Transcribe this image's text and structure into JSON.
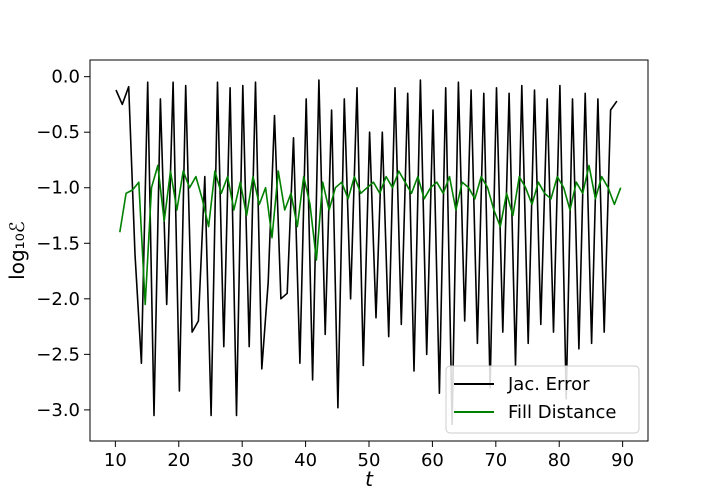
{
  "chart_data": {
    "type": "line",
    "xlabel": "t",
    "ylabel": "log₁₀ℰ",
    "xlim": [
      6.0,
      94.0
    ],
    "ylim": [
      -3.28,
      0.15
    ],
    "xticks": [
      10,
      20,
      30,
      40,
      50,
      60,
      70,
      80,
      90
    ],
    "yticks": [
      0.0,
      -0.5,
      -1.0,
      -1.5,
      -2.0,
      -2.5,
      -3.0
    ],
    "xtick_labels": [
      "10",
      "20",
      "30",
      "40",
      "50",
      "60",
      "70",
      "80",
      "90"
    ],
    "ytick_labels": [
      "0.0",
      "−0.5",
      "−1.0",
      "−1.5",
      "−2.0",
      "−2.5",
      "−3.0"
    ],
    "legend_position": "lower-right",
    "grid": false,
    "series": [
      {
        "name": "Jac. Error",
        "color": "#000000",
        "x": [
          10.1,
          11.1,
          12.1,
          13.1,
          14.1,
          15.1,
          16.1,
          17.1,
          18.1,
          19.1,
          20.1,
          21.1,
          22.1,
          23.1,
          24.1,
          25.1,
          26.1,
          27.1,
          28.1,
          29.1,
          30.1,
          31.1,
          32.1,
          33.1,
          34.1,
          35.1,
          36.1,
          37.1,
          38.1,
          39.1,
          40.1,
          41.1,
          42.1,
          43.1,
          44.1,
          45.1,
          46.1,
          47.1,
          48.1,
          49.1,
          50.1,
          51.1,
          52.1,
          53.1,
          54.1,
          55.1,
          56.1,
          57.1,
          58.1,
          59.1,
          60.1,
          61.1,
          62.1,
          63.1,
          64.1,
          65.1,
          66.1,
          67.1,
          68.1,
          69.1,
          70.1,
          71.1,
          72.1,
          73.1,
          74.1,
          75.1,
          76.1,
          77.1,
          78.1,
          79.1,
          80.1,
          81.1,
          82.1,
          83.1,
          84.1,
          85.1,
          86.1,
          87.1,
          88.1,
          89.1
        ],
        "y": [
          -0.12,
          -0.25,
          -0.09,
          -1.6,
          -2.58,
          -0.05,
          -3.05,
          -0.2,
          -2.05,
          -0.05,
          -2.83,
          -0.08,
          -2.3,
          -2.2,
          -0.9,
          -3.05,
          -0.05,
          -2.43,
          -0.1,
          -3.05,
          -0.08,
          -2.43,
          -0.05,
          -2.63,
          -1.85,
          -0.35,
          -2.0,
          -1.95,
          -0.55,
          -2.58,
          -0.2,
          -2.73,
          -0.03,
          -2.32,
          -0.3,
          -2.98,
          -0.2,
          -2.0,
          -0.1,
          -2.6,
          -0.5,
          -2.17,
          -0.5,
          -2.34,
          -0.1,
          -2.23,
          -0.15,
          -2.65,
          -0.03,
          -2.5,
          -0.3,
          -2.85,
          -0.1,
          -3.13,
          -0.05,
          -2.2,
          -0.12,
          -2.4,
          -0.15,
          -2.8,
          -0.1,
          -2.3,
          -0.15,
          -2.6,
          -0.08,
          -2.4,
          -0.12,
          -2.23,
          -0.2,
          -2.3,
          -0.08,
          -2.9,
          -0.2,
          -2.45,
          -0.15,
          -2.4,
          -0.2,
          -2.3,
          -0.3,
          -0.22
        ]
      },
      {
        "name": "Fill Distance",
        "color": "#008000",
        "x": [
          10.7,
          11.7,
          12.7,
          13.7,
          14.7,
          15.7,
          16.7,
          17.7,
          18.7,
          19.7,
          20.7,
          21.7,
          22.7,
          23.7,
          24.7,
          25.7,
          26.7,
          27.7,
          28.7,
          29.7,
          30.7,
          31.7,
          32.7,
          33.7,
          34.7,
          35.7,
          36.7,
          37.7,
          38.7,
          39.7,
          40.7,
          41.7,
          42.7,
          43.7,
          44.7,
          45.7,
          46.7,
          47.7,
          48.7,
          49.7,
          50.7,
          51.7,
          52.7,
          53.7,
          54.7,
          55.7,
          56.7,
          57.7,
          58.7,
          59.7,
          60.7,
          61.7,
          62.7,
          63.7,
          64.7,
          65.7,
          66.7,
          67.7,
          68.7,
          69.7,
          70.7,
          71.7,
          72.7,
          73.7,
          74.7,
          75.7,
          76.7,
          77.7,
          78.7,
          79.7,
          80.7,
          81.7,
          82.7,
          83.7,
          84.7,
          85.7,
          86.7,
          87.7,
          88.7,
          89.7
        ],
        "y": [
          -1.4,
          -1.05,
          -1.02,
          -0.95,
          -2.05,
          -1.0,
          -0.8,
          -1.3,
          -0.85,
          -1.2,
          -0.85,
          -1.0,
          -0.9,
          -1.1,
          -1.35,
          -0.85,
          -1.05,
          -0.9,
          -1.2,
          -0.95,
          -1.25,
          -0.9,
          -1.15,
          -1.0,
          -1.45,
          -0.85,
          -1.2,
          -1.05,
          -1.35,
          -0.9,
          -1.15,
          -1.65,
          -0.95,
          -1.2,
          -1.0,
          -0.95,
          -1.1,
          -0.9,
          -1.05,
          -1.0,
          -0.95,
          -1.05,
          -0.9,
          -1.0,
          -0.85,
          -0.95,
          -1.05,
          -0.9,
          -1.1,
          -1.0,
          -0.95,
          -1.05,
          -0.9,
          -1.2,
          -0.95,
          -1.0,
          -1.1,
          -0.9,
          -1.0,
          -1.2,
          -1.35,
          -1.05,
          -1.25,
          -0.9,
          -1.0,
          -1.15,
          -0.95,
          -1.05,
          -1.1,
          -0.9,
          -1.0,
          -1.2,
          -0.95,
          -1.05,
          -0.8,
          -1.1,
          -0.9,
          -1.0,
          -1.15,
          -1.0
        ]
      }
    ]
  }
}
